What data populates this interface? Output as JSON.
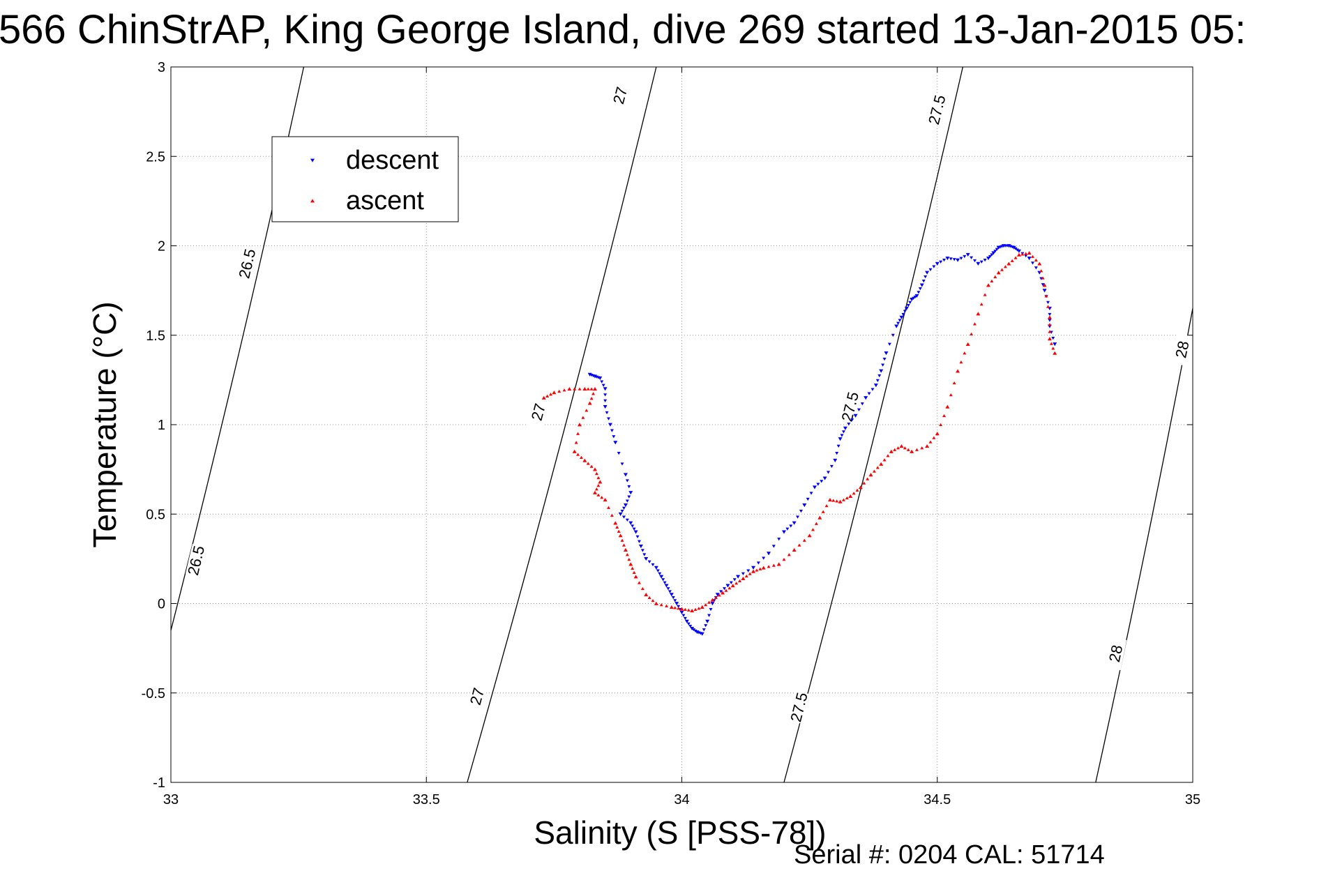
{
  "title": "566 ChinStrAP, King George Island, dive 269 started 13-Jan-2015 05:",
  "footer": "Serial #: 0204  CAL: 51714",
  "colors": {
    "descent": "#0000ff",
    "ascent": "#ff0000",
    "contour": "#000000",
    "grid": "#999999"
  },
  "chart_data": {
    "type": "scatter",
    "xlabel": "Salinity (S [PSS-78])",
    "ylabel": "Temperature (°C)",
    "xlim": [
      33,
      35
    ],
    "ylim": [
      -1,
      3
    ],
    "xticks": [
      33,
      33.5,
      34,
      34.5,
      35
    ],
    "xtick_labels": [
      "33",
      "33.5",
      "34",
      "34.5",
      "35"
    ],
    "yticks": [
      -1,
      -0.5,
      0,
      0.5,
      1,
      1.5,
      2,
      2.5,
      3
    ],
    "ytick_labels": [
      "-1",
      "-0.5",
      "0",
      "0.5",
      "1",
      "1.5",
      "2",
      "2.5",
      "3"
    ],
    "grid": true,
    "legend_position": "upper-left",
    "series": [
      {
        "name": "descent",
        "marker": "triangle-down",
        "x": [
          33.82,
          33.83,
          33.84,
          33.85,
          33.85,
          33.86,
          33.87,
          33.89,
          33.9,
          33.89,
          33.88,
          33.9,
          33.91,
          33.92,
          33.93,
          33.95,
          33.96,
          33.97,
          33.98,
          33.99,
          34.0,
          34.01,
          34.02,
          34.03,
          34.04,
          34.05,
          34.06,
          34.07,
          34.09,
          34.11,
          34.14,
          34.17,
          34.2,
          34.22,
          34.24,
          34.26,
          34.28,
          34.3,
          34.31,
          34.32,
          34.34,
          34.36,
          34.38,
          34.39,
          34.4,
          34.42,
          34.43,
          34.44,
          34.45,
          34.46,
          34.47,
          34.48,
          34.5,
          34.52,
          34.54,
          34.56,
          34.58,
          34.6,
          34.61,
          34.62,
          34.63,
          34.64,
          34.65,
          34.66,
          34.68,
          34.7,
          34.71,
          34.72,
          34.72,
          34.73
        ],
        "y": [
          1.28,
          1.27,
          1.26,
          1.2,
          1.1,
          1.0,
          0.9,
          0.72,
          0.62,
          0.55,
          0.5,
          0.45,
          0.4,
          0.32,
          0.25,
          0.2,
          0.15,
          0.1,
          0.05,
          0.0,
          -0.05,
          -0.1,
          -0.14,
          -0.16,
          -0.17,
          -0.1,
          0.0,
          0.05,
          0.1,
          0.15,
          0.2,
          0.28,
          0.4,
          0.45,
          0.55,
          0.65,
          0.7,
          0.8,
          0.92,
          0.98,
          1.05,
          1.15,
          1.22,
          1.3,
          1.4,
          1.55,
          1.6,
          1.65,
          1.7,
          1.72,
          1.78,
          1.85,
          1.9,
          1.93,
          1.92,
          1.95,
          1.9,
          1.93,
          1.96,
          1.99,
          2.0,
          2.0,
          1.99,
          1.97,
          1.93,
          1.85,
          1.75,
          1.65,
          1.55,
          1.45
        ]
      },
      {
        "name": "ascent",
        "marker": "triangle-up",
        "x": [
          33.73,
          33.75,
          33.78,
          33.81,
          33.83,
          33.82,
          33.8,
          33.79,
          33.81,
          33.83,
          33.84,
          33.83,
          33.85,
          33.87,
          33.88,
          33.89,
          33.9,
          33.91,
          33.93,
          33.95,
          33.98,
          34.0,
          34.02,
          34.04,
          34.06,
          34.08,
          34.1,
          34.12,
          34.14,
          34.16,
          34.19,
          34.22,
          34.25,
          34.27,
          34.29,
          34.31,
          34.33,
          34.35,
          34.37,
          34.39,
          34.41,
          34.43,
          34.45,
          34.48,
          34.5,
          34.52,
          34.54,
          34.56,
          34.58,
          34.6,
          34.62,
          34.64,
          34.66,
          34.68,
          34.7,
          34.71,
          34.72,
          34.72,
          34.73
        ],
        "y": [
          1.15,
          1.18,
          1.2,
          1.2,
          1.2,
          1.12,
          1.0,
          0.85,
          0.8,
          0.75,
          0.68,
          0.62,
          0.58,
          0.45,
          0.38,
          0.3,
          0.22,
          0.15,
          0.05,
          0.0,
          -0.02,
          -0.03,
          -0.04,
          -0.02,
          0.02,
          0.06,
          0.1,
          0.14,
          0.18,
          0.2,
          0.22,
          0.3,
          0.38,
          0.48,
          0.58,
          0.57,
          0.6,
          0.65,
          0.72,
          0.78,
          0.85,
          0.88,
          0.85,
          0.88,
          0.95,
          1.1,
          1.3,
          1.45,
          1.62,
          1.78,
          1.85,
          1.9,
          1.95,
          1.96,
          1.9,
          1.78,
          1.6,
          1.48,
          1.4
        ]
      }
    ],
    "density_contours": [
      {
        "level": "26.5",
        "x": [
          33.0,
          33.26
        ],
        "y": [
          -0.15,
          3.0
        ],
        "labels": [
          {
            "text": "26.5",
            "x": 33.05,
            "y": 0.24
          },
          {
            "text": "26.5",
            "x": 33.15,
            "y": 1.9
          }
        ]
      },
      {
        "level": "27",
        "x": [
          33.58,
          33.95
        ],
        "y": [
          -1.0,
          3.0
        ],
        "labels": [
          {
            "text": "27",
            "x": 33.6,
            "y": -0.52
          },
          {
            "text": "27",
            "x": 33.72,
            "y": 1.07
          },
          {
            "text": "27",
            "x": 33.88,
            "y": 2.84
          }
        ]
      },
      {
        "level": "27.5",
        "x": [
          34.2,
          34.55
        ],
        "y": [
          -1.0,
          3.0
        ],
        "labels": [
          {
            "text": "27.5",
            "x": 34.23,
            "y": -0.58
          },
          {
            "text": "27.5",
            "x": 34.33,
            "y": 1.1
          },
          {
            "text": "27.5",
            "x": 34.5,
            "y": 2.76
          }
        ]
      },
      {
        "level": "28",
        "x": [
          34.81,
          35.0
        ],
        "y": [
          -1.0,
          1.65
        ],
        "labels": [
          {
            "text": "28",
            "x": 34.85,
            "y": -0.28
          },
          {
            "text": "28",
            "x": 34.98,
            "y": 1.42
          }
        ]
      }
    ]
  }
}
